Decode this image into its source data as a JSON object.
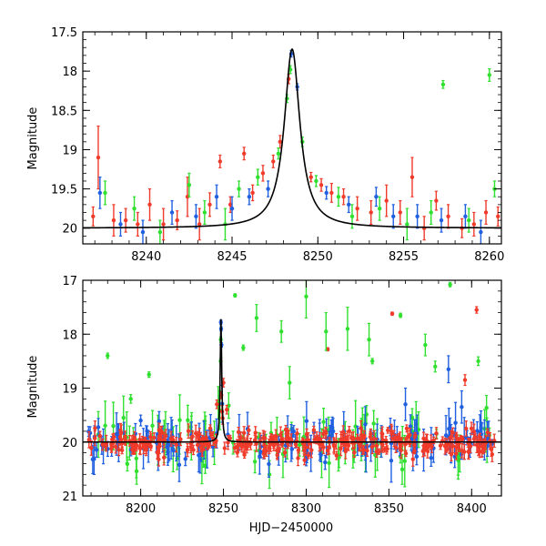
{
  "colors": {
    "red": "#f03a2a",
    "green": "#2fe02f",
    "blue": "#1f5fe0",
    "model": "#000000"
  },
  "chart_data": [
    {
      "type": "scatter",
      "title": "",
      "xlabel": "",
      "ylabel": "Magnitude",
      "xlim": [
        8236.3,
        8260.7
      ],
      "ylim": [
        20.2,
        17.5
      ],
      "y_inverted": true,
      "xticks": [
        8240,
        8245,
        8250,
        8255,
        8260
      ],
      "xtick_labels": [
        "8240",
        "8245",
        "8250",
        "8255",
        "8260"
      ],
      "yticks": [
        17.5,
        18,
        18.5,
        19,
        19.5,
        20
      ],
      "ytick_labels": [
        "17.5",
        "18",
        "18.5",
        "19",
        "19.5",
        "20"
      ],
      "model_curve": {
        "type": "lorentzian-peak",
        "x0": 8248.5,
        "baseline": 20.0,
        "peak": 17.72,
        "width": 0.55
      },
      "series": [
        {
          "color": "red",
          "points": [
            {
              "x": 8236.9,
              "y": 19.85,
              "e": 0.12
            },
            {
              "x": 8237.2,
              "y": 19.1,
              "e": 0.4
            },
            {
              "x": 8238.1,
              "y": 19.9,
              "e": 0.2
            },
            {
              "x": 8238.8,
              "y": 19.9,
              "e": 0.15
            },
            {
              "x": 8239.5,
              "y": 19.95,
              "e": 0.15
            },
            {
              "x": 8240.2,
              "y": 19.7,
              "e": 0.2
            },
            {
              "x": 8241.0,
              "y": 19.95,
              "e": 0.2
            },
            {
              "x": 8241.8,
              "y": 19.9,
              "e": 0.12
            },
            {
              "x": 8242.4,
              "y": 19.6,
              "e": 0.25
            },
            {
              "x": 8243.1,
              "y": 19.95,
              "e": 0.2
            },
            {
              "x": 8243.7,
              "y": 19.7,
              "e": 0.15
            },
            {
              "x": 8244.3,
              "y": 19.15,
              "e": 0.08
            },
            {
              "x": 8244.9,
              "y": 19.7,
              "e": 0.1
            },
            {
              "x": 8245.7,
              "y": 19.05,
              "e": 0.08
            },
            {
              "x": 8246.2,
              "y": 19.55,
              "e": 0.1
            },
            {
              "x": 8246.8,
              "y": 19.3,
              "e": 0.1
            },
            {
              "x": 8247.4,
              "y": 19.15,
              "e": 0.08
            },
            {
              "x": 8247.8,
              "y": 18.9,
              "e": 0.08
            },
            {
              "x": 8248.3,
              "y": 18.1,
              "e": 0.06
            },
            {
              "x": 8249.6,
              "y": 19.35,
              "e": 0.06
            },
            {
              "x": 8250.2,
              "y": 19.45,
              "e": 0.08
            },
            {
              "x": 8250.8,
              "y": 19.55,
              "e": 0.12
            },
            {
              "x": 8251.5,
              "y": 19.6,
              "e": 0.1
            },
            {
              "x": 8252.3,
              "y": 19.75,
              "e": 0.15
            },
            {
              "x": 8253.1,
              "y": 19.8,
              "e": 0.15
            },
            {
              "x": 8254.0,
              "y": 19.65,
              "e": 0.2
            },
            {
              "x": 8254.8,
              "y": 19.8,
              "e": 0.15
            },
            {
              "x": 8255.5,
              "y": 19.35,
              "e": 0.25
            },
            {
              "x": 8256.2,
              "y": 20.0,
              "e": 0.15
            },
            {
              "x": 8256.9,
              "y": 19.65,
              "e": 0.12
            },
            {
              "x": 8257.6,
              "y": 19.85,
              "e": 0.15
            },
            {
              "x": 8258.4,
              "y": 20.0,
              "e": 0.12
            },
            {
              "x": 8259.1,
              "y": 19.95,
              "e": 0.15
            },
            {
              "x": 8259.8,
              "y": 19.8,
              "e": 0.15
            },
            {
              "x": 8260.5,
              "y": 19.85,
              "e": 0.12
            }
          ]
        },
        {
          "color": "green",
          "points": [
            {
              "x": 8237.6,
              "y": 19.55,
              "e": 0.15
            },
            {
              "x": 8239.3,
              "y": 19.75,
              "e": 0.15
            },
            {
              "x": 8240.8,
              "y": 20.05,
              "e": 0.15
            },
            {
              "x": 8242.5,
              "y": 19.45,
              "e": 0.15
            },
            {
              "x": 8243.4,
              "y": 19.8,
              "e": 0.15
            },
            {
              "x": 8244.6,
              "y": 19.95,
              "e": 0.2
            },
            {
              "x": 8245.4,
              "y": 19.5,
              "e": 0.1
            },
            {
              "x": 8246.5,
              "y": 19.35,
              "e": 0.1
            },
            {
              "x": 8247.7,
              "y": 19.05,
              "e": 0.07
            },
            {
              "x": 8248.2,
              "y": 18.35,
              "e": 0.05
            },
            {
              "x": 8248.4,
              "y": 17.98,
              "e": 0.05
            },
            {
              "x": 8249.1,
              "y": 18.9,
              "e": 0.06
            },
            {
              "x": 8249.9,
              "y": 19.4,
              "e": 0.07
            },
            {
              "x": 8251.2,
              "y": 19.6,
              "e": 0.12
            },
            {
              "x": 8252.0,
              "y": 19.85,
              "e": 0.15
            },
            {
              "x": 8253.6,
              "y": 19.75,
              "e": 0.15
            },
            {
              "x": 8255.2,
              "y": 19.95,
              "e": 0.2
            },
            {
              "x": 8256.6,
              "y": 19.8,
              "e": 0.15
            },
            {
              "x": 8257.3,
              "y": 18.17,
              "e": 0.05
            },
            {
              "x": 8258.8,
              "y": 19.9,
              "e": 0.15
            },
            {
              "x": 8260.0,
              "y": 18.05,
              "e": 0.08
            },
            {
              "x": 8260.3,
              "y": 19.5,
              "e": 0.1
            }
          ]
        },
        {
          "color": "blue",
          "points": [
            {
              "x": 8237.3,
              "y": 19.55,
              "e": 0.2
            },
            {
              "x": 8238.5,
              "y": 19.95,
              "e": 0.15
            },
            {
              "x": 8239.8,
              "y": 20.05,
              "e": 0.15
            },
            {
              "x": 8241.5,
              "y": 19.8,
              "e": 0.15
            },
            {
              "x": 8242.9,
              "y": 19.85,
              "e": 0.15
            },
            {
              "x": 8244.1,
              "y": 19.6,
              "e": 0.15
            },
            {
              "x": 8245.0,
              "y": 19.75,
              "e": 0.15
            },
            {
              "x": 8246.0,
              "y": 19.6,
              "e": 0.1
            },
            {
              "x": 8247.1,
              "y": 19.5,
              "e": 0.1
            },
            {
              "x": 8248.45,
              "y": 17.78,
              "e": 0.04
            },
            {
              "x": 8248.8,
              "y": 18.2,
              "e": 0.04
            },
            {
              "x": 8250.5,
              "y": 19.55,
              "e": 0.08
            },
            {
              "x": 8251.8,
              "y": 19.7,
              "e": 0.1
            },
            {
              "x": 8253.4,
              "y": 19.6,
              "e": 0.12
            },
            {
              "x": 8254.4,
              "y": 19.85,
              "e": 0.15
            },
            {
              "x": 8255.8,
              "y": 19.85,
              "e": 0.15
            },
            {
              "x": 8257.2,
              "y": 19.9,
              "e": 0.15
            },
            {
              "x": 8258.6,
              "y": 19.85,
              "e": 0.15
            },
            {
              "x": 8259.5,
              "y": 20.05,
              "e": 0.15
            }
          ]
        }
      ]
    },
    {
      "type": "scatter",
      "title": "",
      "xlabel": "HJD−2450000",
      "ylabel": "Magnitude",
      "xlim": [
        8165,
        8418
      ],
      "ylim": [
        21,
        17
      ],
      "y_inverted": true,
      "xticks": [
        8200,
        8250,
        8300,
        8350,
        8400
      ],
      "xtick_labels": [
        "8200",
        "8250",
        "8300",
        "8350",
        "8400"
      ],
      "yticks": [
        17,
        18,
        19,
        20,
        21
      ],
      "ytick_labels": [
        "17",
        "18",
        "19",
        "20",
        "21"
      ],
      "model_curve": {
        "type": "lorentzian-peak",
        "x0": 8248.5,
        "baseline": 20.0,
        "peak": 17.72,
        "width": 0.55
      },
      "dense_noise": {
        "x_range": [
          8168,
          8415
        ],
        "baseline": 20.0,
        "n_red": 340,
        "n_blue": 140,
        "n_green": 90
      },
      "series": [
        {
          "color": "red",
          "points": [
            {
              "x": 8352,
              "y": 17.62,
              "e": 0.03
            },
            {
              "x": 8313,
              "y": 18.28,
              "e": 0.03
            },
            {
              "x": 8403,
              "y": 17.55,
              "e": 0.06
            },
            {
              "x": 8396,
              "y": 18.85,
              "e": 0.1
            },
            {
              "x": 8250,
              "y": 18.9,
              "e": 0.08
            },
            {
              "x": 8246,
              "y": 19.3,
              "e": 0.08
            },
            {
              "x": 8252,
              "y": 19.4,
              "e": 0.08
            }
          ]
        },
        {
          "color": "green",
          "points": [
            {
              "x": 8257,
              "y": 17.28,
              "e": 0.03
            },
            {
              "x": 8357,
              "y": 17.65,
              "e": 0.04
            },
            {
              "x": 8387,
              "y": 17.08,
              "e": 0.04
            },
            {
              "x": 8300,
              "y": 17.3,
              "e": 0.4
            },
            {
              "x": 8312,
              "y": 17.95,
              "e": 0.35
            },
            {
              "x": 8325,
              "y": 17.9,
              "e": 0.4
            },
            {
              "x": 8180,
              "y": 18.4,
              "e": 0.05
            },
            {
              "x": 8262,
              "y": 18.25,
              "e": 0.05
            },
            {
              "x": 8270,
              "y": 17.7,
              "e": 0.25
            },
            {
              "x": 8285,
              "y": 17.95,
              "e": 0.2
            },
            {
              "x": 8338,
              "y": 18.1,
              "e": 0.3
            },
            {
              "x": 8372,
              "y": 18.2,
              "e": 0.2
            },
            {
              "x": 8205,
              "y": 18.75,
              "e": 0.05
            },
            {
              "x": 8340,
              "y": 18.5,
              "e": 0.05
            },
            {
              "x": 8378,
              "y": 18.6,
              "e": 0.1
            },
            {
              "x": 8404,
              "y": 18.5,
              "e": 0.08
            },
            {
              "x": 8248.3,
              "y": 18.5,
              "e": 0.05
            },
            {
              "x": 8248.4,
              "y": 18.1,
              "e": 0.05
            },
            {
              "x": 8194,
              "y": 19.2,
              "e": 0.08
            },
            {
              "x": 8290,
              "y": 18.9,
              "e": 0.3
            }
          ]
        },
        {
          "color": "blue",
          "points": [
            {
              "x": 8248.45,
              "y": 17.78,
              "e": 0.04
            },
            {
              "x": 8248.6,
              "y": 17.9,
              "e": 0.04
            },
            {
              "x": 8248.8,
              "y": 18.2,
              "e": 0.04
            },
            {
              "x": 8386,
              "y": 18.65,
              "e": 0.25
            },
            {
              "x": 8394,
              "y": 19.35,
              "e": 0.3
            },
            {
              "x": 8360,
              "y": 19.3,
              "e": 0.3
            },
            {
              "x": 8200,
              "y": 19.6,
              "e": 0.1
            }
          ]
        }
      ]
    }
  ]
}
